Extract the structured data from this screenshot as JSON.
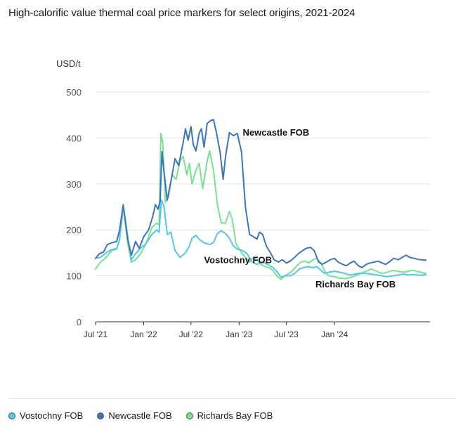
{
  "title": "High-calorific value thermal coal price markers for select origins, 2021-2024",
  "chart_data": {
    "type": "line",
    "ylabel": "USD/t",
    "ylim": [
      0,
      500
    ],
    "yticks": [
      0,
      100,
      200,
      300,
      400,
      500
    ],
    "xlim": [
      "2021-07-01",
      "2024-12-31"
    ],
    "xticks": [
      {
        "date": "2021-07-01",
        "label": "Jul '21"
      },
      {
        "date": "2022-01-01",
        "label": "Jan '22"
      },
      {
        "date": "2022-07-01",
        "label": "Jul '22"
      },
      {
        "date": "2023-01-01",
        "label": "Jan '23"
      },
      {
        "date": "2023-07-01",
        "label": "Jul '23"
      },
      {
        "date": "2024-01-01",
        "label": "Jan '24"
      }
    ],
    "grid": true,
    "legend_position": "bottom",
    "annotations": [
      {
        "text": "Newcastle FOB",
        "series": 1,
        "x": "2023-01-15",
        "y": 405
      },
      {
        "text": "Vostochny FOB",
        "series": 0,
        "x": "2022-08-20",
        "y": 128
      },
      {
        "text": "Richards Bay FOB",
        "series": 2,
        "x": "2023-10-20",
        "y": 75
      }
    ],
    "series": [
      {
        "name": "Vostochny FOB",
        "color": "#52c7ea",
        "points": [
          [
            "2021-07-01",
            138
          ],
          [
            "2021-07-20",
            140
          ],
          [
            "2021-08-10",
            150
          ],
          [
            "2021-09-01",
            157
          ],
          [
            "2021-09-20",
            160
          ],
          [
            "2021-10-01",
            180
          ],
          [
            "2021-10-15",
            252
          ],
          [
            "2021-11-01",
            185
          ],
          [
            "2021-11-15",
            135
          ],
          [
            "2021-12-01",
            148
          ],
          [
            "2021-12-20",
            160
          ],
          [
            "2022-01-10",
            170
          ],
          [
            "2022-02-01",
            190
          ],
          [
            "2022-02-20",
            200
          ],
          [
            "2022-03-01",
            195
          ],
          [
            "2022-03-10",
            265
          ],
          [
            "2022-03-20",
            250
          ],
          [
            "2022-04-01",
            190
          ],
          [
            "2022-04-15",
            195
          ],
          [
            "2022-05-01",
            155
          ],
          [
            "2022-05-20",
            140
          ],
          [
            "2022-06-10",
            150
          ],
          [
            "2022-06-25",
            165
          ],
          [
            "2022-07-05",
            182
          ],
          [
            "2022-07-20",
            188
          ],
          [
            "2022-08-01",
            180
          ],
          [
            "2022-08-20",
            172
          ],
          [
            "2022-09-10",
            168
          ],
          [
            "2022-09-25",
            172
          ],
          [
            "2022-10-10",
            192
          ],
          [
            "2022-10-25",
            198
          ],
          [
            "2022-11-10",
            192
          ],
          [
            "2022-11-25",
            182
          ],
          [
            "2022-12-10",
            165
          ],
          [
            "2022-12-25",
            158
          ],
          [
            "2023-01-15",
            155
          ],
          [
            "2023-02-01",
            148
          ],
          [
            "2023-02-20",
            130
          ],
          [
            "2023-03-10",
            125
          ],
          [
            "2023-04-01",
            130
          ],
          [
            "2023-04-20",
            125
          ],
          [
            "2023-05-10",
            118
          ],
          [
            "2023-05-25",
            110
          ],
          [
            "2023-06-10",
            97
          ],
          [
            "2023-06-25",
            100
          ],
          [
            "2023-07-15",
            100
          ],
          [
            "2023-08-01",
            105
          ],
          [
            "2023-08-20",
            115
          ],
          [
            "2023-09-05",
            118
          ],
          [
            "2023-09-20",
            120
          ],
          [
            "2023-10-10",
            118
          ],
          [
            "2023-10-25",
            120
          ],
          [
            "2023-11-10",
            112
          ],
          [
            "2023-11-25",
            105
          ],
          [
            "2023-12-10",
            108
          ],
          [
            "2024-01-01",
            110
          ],
          [
            "2024-01-20",
            108
          ],
          [
            "2024-02-10",
            105
          ],
          [
            "2024-03-01",
            102
          ],
          [
            "2024-03-20",
            104
          ],
          [
            "2024-04-10",
            106
          ],
          [
            "2024-05-01",
            105
          ],
          [
            "2024-05-20",
            104
          ],
          [
            "2024-06-10",
            102
          ],
          [
            "2024-07-01",
            100
          ],
          [
            "2024-07-20",
            98
          ],
          [
            "2024-08-10",
            100
          ],
          [
            "2024-09-01",
            102
          ],
          [
            "2024-09-20",
            104
          ],
          [
            "2024-10-10",
            102
          ],
          [
            "2024-10-25",
            103
          ],
          [
            "2024-11-10",
            102
          ],
          [
            "2024-11-25",
            101
          ],
          [
            "2024-12-15",
            103
          ]
        ]
      },
      {
        "name": "Newcastle FOB",
        "color": "#3e74b8",
        "points": [
          [
            "2021-07-01",
            138
          ],
          [
            "2021-07-15",
            148
          ],
          [
            "2021-08-01",
            152
          ],
          [
            "2021-08-15",
            168
          ],
          [
            "2021-09-01",
            172
          ],
          [
            "2021-09-20",
            175
          ],
          [
            "2021-10-01",
            200
          ],
          [
            "2021-10-15",
            255
          ],
          [
            "2021-11-01",
            180
          ],
          [
            "2021-11-15",
            145
          ],
          [
            "2021-12-01",
            175
          ],
          [
            "2021-12-15",
            160
          ],
          [
            "2022-01-01",
            185
          ],
          [
            "2022-01-20",
            200
          ],
          [
            "2022-02-05",
            230
          ],
          [
            "2022-02-15",
            255
          ],
          [
            "2022-02-25",
            245
          ],
          [
            "2022-03-05",
            262
          ],
          [
            "2022-03-12",
            370
          ],
          [
            "2022-03-18",
            335
          ],
          [
            "2022-04-01",
            265
          ],
          [
            "2022-04-15",
            305
          ],
          [
            "2022-05-01",
            355
          ],
          [
            "2022-05-15",
            340
          ],
          [
            "2022-06-01",
            390
          ],
          [
            "2022-06-10",
            420
          ],
          [
            "2022-06-20",
            395
          ],
          [
            "2022-07-01",
            425
          ],
          [
            "2022-07-10",
            385
          ],
          [
            "2022-07-20",
            372
          ],
          [
            "2022-08-01",
            410
          ],
          [
            "2022-08-10",
            420
          ],
          [
            "2022-08-20",
            380
          ],
          [
            "2022-09-01",
            432
          ],
          [
            "2022-09-15",
            438
          ],
          [
            "2022-09-25",
            440
          ],
          [
            "2022-10-05",
            415
          ],
          [
            "2022-10-20",
            370
          ],
          [
            "2022-11-01",
            310
          ],
          [
            "2022-11-10",
            360
          ],
          [
            "2022-11-25",
            412
          ],
          [
            "2022-12-10",
            405
          ],
          [
            "2022-12-25",
            410
          ],
          [
            "2023-01-10",
            370
          ],
          [
            "2023-01-25",
            250
          ],
          [
            "2023-02-10",
            190
          ],
          [
            "2023-02-25",
            185
          ],
          [
            "2023-03-10",
            180
          ],
          [
            "2023-03-20",
            195
          ],
          [
            "2023-04-01",
            190
          ],
          [
            "2023-04-15",
            165
          ],
          [
            "2023-05-01",
            150
          ],
          [
            "2023-05-15",
            135
          ],
          [
            "2023-06-01",
            130
          ],
          [
            "2023-06-15",
            135
          ],
          [
            "2023-07-01",
            128
          ],
          [
            "2023-07-15",
            132
          ],
          [
            "2023-08-01",
            140
          ],
          [
            "2023-08-15",
            148
          ],
          [
            "2023-09-01",
            155
          ],
          [
            "2023-09-15",
            160
          ],
          [
            "2023-10-01",
            162
          ],
          [
            "2023-10-15",
            155
          ],
          [
            "2023-11-01",
            130
          ],
          [
            "2023-11-15",
            125
          ],
          [
            "2023-12-01",
            130
          ],
          [
            "2023-12-15",
            135
          ],
          [
            "2024-01-01",
            138
          ],
          [
            "2024-01-15",
            130
          ],
          [
            "2024-02-01",
            125
          ],
          [
            "2024-02-15",
            122
          ],
          [
            "2024-03-01",
            128
          ],
          [
            "2024-03-15",
            132
          ],
          [
            "2024-04-01",
            122
          ],
          [
            "2024-04-15",
            118
          ],
          [
            "2024-05-01",
            125
          ],
          [
            "2024-05-15",
            128
          ],
          [
            "2024-06-01",
            130
          ],
          [
            "2024-06-15",
            132
          ],
          [
            "2024-07-01",
            128
          ],
          [
            "2024-07-15",
            125
          ],
          [
            "2024-08-01",
            132
          ],
          [
            "2024-08-15",
            138
          ],
          [
            "2024-09-01",
            135
          ],
          [
            "2024-09-15",
            140
          ],
          [
            "2024-10-01",
            145
          ],
          [
            "2024-10-15",
            140
          ],
          [
            "2024-11-01",
            138
          ],
          [
            "2024-11-15",
            136
          ],
          [
            "2024-12-15",
            134
          ]
        ]
      },
      {
        "name": "Richards Bay FOB",
        "color": "#79e08e",
        "points": [
          [
            "2021-07-01",
            115
          ],
          [
            "2021-07-20",
            130
          ],
          [
            "2021-08-10",
            140
          ],
          [
            "2021-09-01",
            155
          ],
          [
            "2021-09-20",
            158
          ],
          [
            "2021-10-01",
            178
          ],
          [
            "2021-10-15",
            250
          ],
          [
            "2021-11-01",
            170
          ],
          [
            "2021-11-15",
            130
          ],
          [
            "2021-12-01",
            135
          ],
          [
            "2021-12-20",
            148
          ],
          [
            "2022-01-10",
            170
          ],
          [
            "2022-02-01",
            205
          ],
          [
            "2022-02-20",
            215
          ],
          [
            "2022-03-01",
            210
          ],
          [
            "2022-03-08",
            410
          ],
          [
            "2022-03-15",
            390
          ],
          [
            "2022-03-25",
            260
          ],
          [
            "2022-04-05",
            270
          ],
          [
            "2022-04-20",
            320
          ],
          [
            "2022-05-05",
            310
          ],
          [
            "2022-05-20",
            350
          ],
          [
            "2022-06-01",
            360
          ],
          [
            "2022-06-15",
            320
          ],
          [
            "2022-06-25",
            345
          ],
          [
            "2022-07-05",
            300
          ],
          [
            "2022-07-20",
            330
          ],
          [
            "2022-08-01",
            345
          ],
          [
            "2022-08-15",
            290
          ],
          [
            "2022-09-01",
            350
          ],
          [
            "2022-09-10",
            372
          ],
          [
            "2022-09-25",
            330
          ],
          [
            "2022-10-10",
            255
          ],
          [
            "2022-10-25",
            215
          ],
          [
            "2022-11-10",
            215
          ],
          [
            "2022-11-25",
            240
          ],
          [
            "2022-12-05",
            225
          ],
          [
            "2022-12-20",
            170
          ],
          [
            "2023-01-10",
            150
          ],
          [
            "2023-01-25",
            140
          ],
          [
            "2023-02-10",
            130
          ],
          [
            "2023-02-25",
            140
          ],
          [
            "2023-03-10",
            135
          ],
          [
            "2023-03-25",
            125
          ],
          [
            "2023-04-10",
            120
          ],
          [
            "2023-04-25",
            118
          ],
          [
            "2023-05-10",
            112
          ],
          [
            "2023-05-25",
            100
          ],
          [
            "2023-06-10",
            92
          ],
          [
            "2023-06-25",
            100
          ],
          [
            "2023-07-10",
            105
          ],
          [
            "2023-07-25",
            112
          ],
          [
            "2023-08-10",
            122
          ],
          [
            "2023-08-25",
            130
          ],
          [
            "2023-09-10",
            132
          ],
          [
            "2023-09-25",
            128
          ],
          [
            "2023-10-10",
            135
          ],
          [
            "2023-10-25",
            138
          ],
          [
            "2023-11-10",
            128
          ],
          [
            "2023-11-25",
            110
          ],
          [
            "2023-12-10",
            100
          ],
          [
            "2024-01-01",
            98
          ],
          [
            "2024-01-20",
            95
          ],
          [
            "2024-02-10",
            94
          ],
          [
            "2024-03-01",
            96
          ],
          [
            "2024-03-20",
            100
          ],
          [
            "2024-04-10",
            105
          ],
          [
            "2024-05-01",
            110
          ],
          [
            "2024-05-20",
            115
          ],
          [
            "2024-06-10",
            110
          ],
          [
            "2024-07-01",
            105
          ],
          [
            "2024-07-20",
            108
          ],
          [
            "2024-08-10",
            112
          ],
          [
            "2024-09-01",
            110
          ],
          [
            "2024-09-20",
            108
          ],
          [
            "2024-10-10",
            110
          ],
          [
            "2024-10-25",
            112
          ],
          [
            "2024-11-10",
            110
          ],
          [
            "2024-11-25",
            108
          ],
          [
            "2024-12-15",
            105
          ]
        ]
      }
    ]
  }
}
